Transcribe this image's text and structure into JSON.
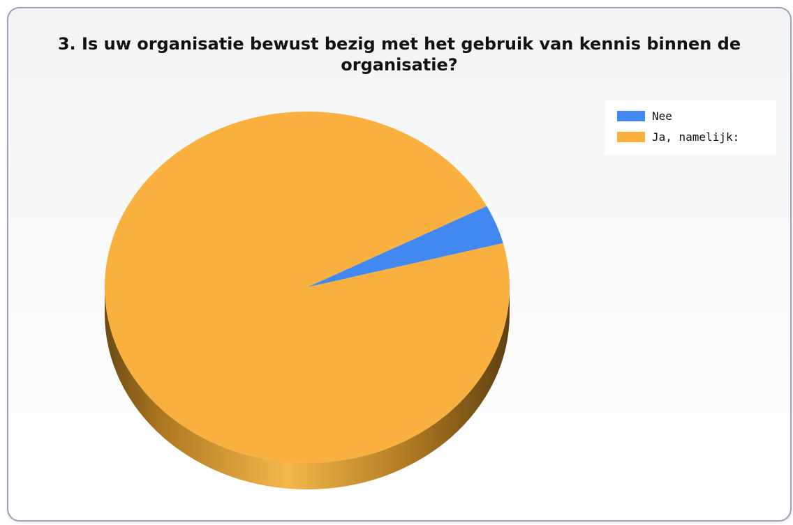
{
  "chart_data": {
    "type": "pie",
    "title": "3. Is uw organisatie bewust bezig met het gebruik van kennis binnen de organisatie?",
    "three_d": true,
    "legend_position": "top-right",
    "slices": [
      {
        "label": "Nee",
        "value": 3.6,
        "color": "#4189f0",
        "side_color": "#1d3a63"
      },
      {
        "label": "Ja, namelijk:",
        "value": 96.4,
        "color": "#f9b03e",
        "side_color": "#c08526"
      }
    ]
  }
}
